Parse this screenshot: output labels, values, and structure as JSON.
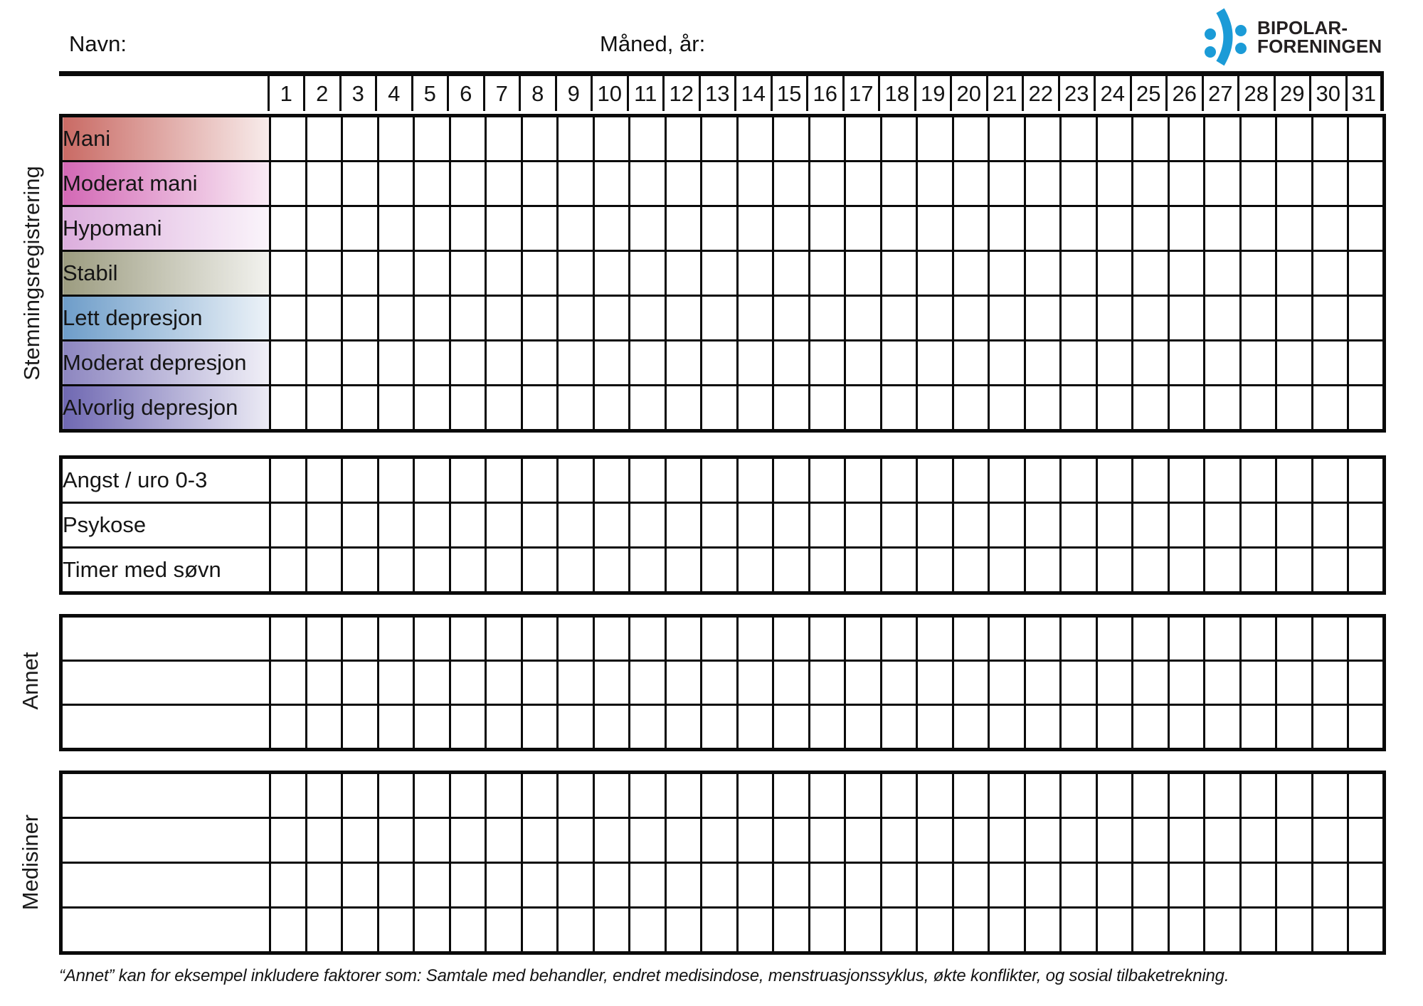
{
  "header": {
    "name_label": "Navn:",
    "month_year_label": "Måned, år:"
  },
  "logo": {
    "brand_line1": "BIPOLAR-",
    "brand_line2": "FORENINGEN",
    "mark_color": "#1B9BD7",
    "text_color": "#231F20"
  },
  "day_columns": [
    1,
    2,
    3,
    4,
    5,
    6,
    7,
    8,
    9,
    10,
    11,
    12,
    13,
    14,
    15,
    16,
    17,
    18,
    19,
    20,
    21,
    22,
    23,
    24,
    25,
    26,
    27,
    28,
    29,
    30,
    31
  ],
  "mood_section": {
    "side_label": "Stemningsregistrering",
    "rows": [
      {
        "label": "Mani",
        "color": "#C96A64"
      },
      {
        "label": "Moderat mani",
        "color": "#D368B5"
      },
      {
        "label": "Hypomani",
        "color": "#DCAEDD"
      },
      {
        "label": "Stabil",
        "color": "#9C9C80"
      },
      {
        "label": "Lett depresjon",
        "color": "#6E9DC9"
      },
      {
        "label": "Moderat depresjon",
        "color": "#8D86C0"
      },
      {
        "label": "Alvorlig depresjon",
        "color": "#6F68B2"
      }
    ]
  },
  "symptom_section": {
    "rows": [
      {
        "label": "Angst / uro 0-3"
      },
      {
        "label": "Psykose"
      },
      {
        "label": "Timer med søvn"
      }
    ]
  },
  "annet_section": {
    "side_label": "Annet",
    "row_count": 3
  },
  "medisiner_section": {
    "side_label": "Medisiner",
    "row_count": 4
  },
  "footnote": "“Annet” kan for eksempel inkludere faktorer som: Samtale med behandler, endret medisindose, menstruasjonssyklus, økte konflikter, og sosial tilbaketrekning."
}
